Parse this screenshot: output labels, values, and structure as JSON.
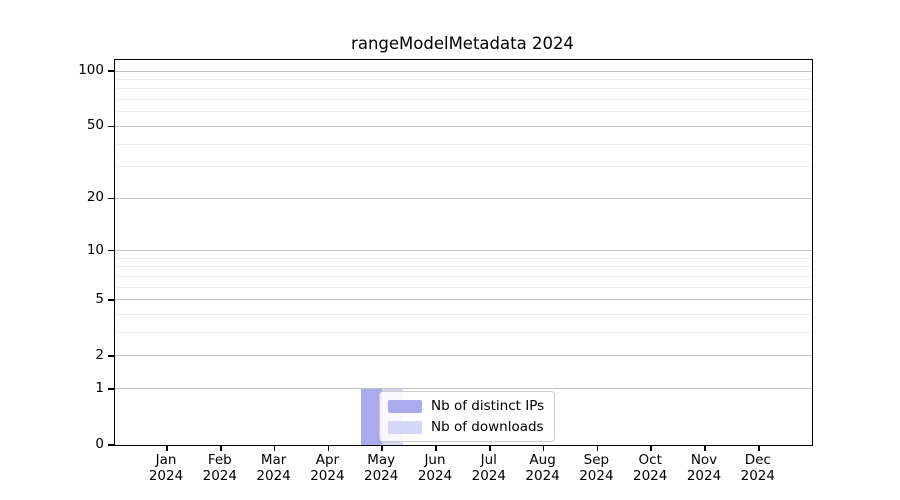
{
  "title": "rangeModelMetadata 2024",
  "chart_data": {
    "type": "bar",
    "title": "rangeModelMetadata 2024",
    "x_axis": {
      "categories": [
        "Jan",
        "Feb",
        "Mar",
        "Apr",
        "May",
        "Jun",
        "Jul",
        "Aug",
        "Sep",
        "Oct",
        "Nov",
        "Dec"
      ],
      "sub_label": "2024"
    },
    "y_axis": {
      "scale": "log1p",
      "ticks": [
        0,
        1,
        2,
        5,
        10,
        20,
        50,
        100
      ],
      "minor_gridlines": [
        3,
        4,
        6,
        7,
        8,
        9,
        30,
        40,
        60,
        70,
        80,
        90
      ],
      "range": [
        0,
        115
      ],
      "grid": "horizontal"
    },
    "series": [
      {
        "name": "Nb of distinct IPs",
        "color": "#aaaaee",
        "values": [
          0,
          0,
          0,
          0,
          1,
          0,
          0,
          0,
          0,
          0,
          0,
          0
        ]
      },
      {
        "name": "Nb of downloads",
        "color": "#d6d6f6",
        "values": [
          0,
          0,
          0,
          0,
          1,
          0,
          0,
          0,
          0,
          0,
          0,
          0
        ]
      }
    ],
    "legend": {
      "position": "inside-bottom-center"
    },
    "colors": {
      "axis": "#000000",
      "major_grid": "#c3c3c3",
      "minor_grid": "#ededed",
      "background": "#ffffff"
    }
  }
}
